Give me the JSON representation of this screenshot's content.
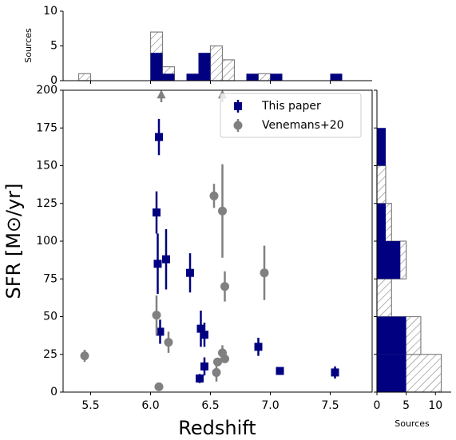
{
  "chart_data": [
    {
      "type": "histogram",
      "orientation": "vertical",
      "ylabel": "Sources",
      "bins": [
        5.4,
        5.5,
        5.6,
        5.7,
        5.8,
        5.9,
        6.0,
        6.1,
        6.2,
        6.3,
        6.4,
        6.5,
        6.6,
        6.7,
        6.8,
        6.9,
        7.0,
        7.1,
        7.2,
        7.3,
        7.4,
        7.5,
        7.6
      ],
      "xlim": [
        5.27,
        7.85
      ],
      "ylim": [
        0,
        10
      ],
      "yticks": [
        0,
        5,
        10
      ],
      "series": [
        {
          "color": "#808080",
          "hatch": true,
          "values": [
            1,
            0,
            0,
            0,
            0,
            0,
            7,
            2,
            0,
            0,
            0,
            5,
            3,
            0,
            0,
            1,
            0,
            0,
            0,
            0,
            0,
            0
          ]
        },
        {
          "color": "#000080",
          "hatch": false,
          "values": [
            0,
            0,
            0,
            0,
            0,
            0,
            4,
            1,
            0,
            1,
            4,
            0,
            0,
            0,
            1,
            0,
            1,
            0,
            0,
            0,
            0,
            1
          ]
        }
      ]
    },
    {
      "type": "scatter",
      "xlabel": "Redshift",
      "ylabel": "SFR [M⊙/yr]",
      "xlim": [
        5.27,
        7.85
      ],
      "ylim": [
        0,
        200
      ],
      "xticks": [
        5.5,
        {
          "value": 6,
          "label": "6.0"
        },
        6.5,
        {
          "value": 7,
          "label": "7.0"
        },
        7.5
      ],
      "yticks": [
        0,
        25,
        50,
        75,
        100,
        125,
        150,
        175,
        200
      ],
      "legend": "upper right",
      "series": [
        {
          "name": "This paper",
          "color": "#000080",
          "marker": "square",
          "x": [
            6.07,
            6.05,
            6.06,
            6.13,
            6.08,
            6.33,
            6.42,
            6.45,
            6.45,
            6.41,
            6.9,
            7.08,
            7.54
          ],
          "values": [
            169,
            119,
            85,
            88,
            40,
            79,
            42,
            38,
            17,
            9,
            30,
            14,
            13
          ],
          "errors": [
            12,
            14,
            20,
            20,
            8,
            13,
            12,
            8,
            6,
            3,
            6,
            2,
            4
          ]
        },
        {
          "name": "Venemans+20",
          "color": "#808080",
          "marker": "circle",
          "x": [
            5.45,
            6.05,
            6.07,
            6.15,
            6.53,
            6.6,
            6.62,
            6.95,
            6.55,
            6.56,
            6.6,
            6.62
          ],
          "values": [
            24,
            51,
            3.5,
            33,
            130,
            120,
            70,
            79,
            13,
            20,
            26,
            22
          ],
          "errors": [
            4,
            13,
            0,
            7,
            8,
            31,
            10,
            18,
            6,
            0,
            5,
            0
          ],
          "arrows_x": [
            6.09,
            6.6
          ]
        }
      ]
    },
    {
      "type": "histogram",
      "orientation": "horizontal",
      "xlabel": "Sources",
      "bins": [
        0,
        25,
        50,
        75,
        100,
        125,
        150,
        175,
        200
      ],
      "xlim": [
        0,
        12.7
      ],
      "ylim": [
        0,
        200
      ],
      "xticks": [
        0,
        5,
        10
      ],
      "series": [
        {
          "color": "#808080",
          "hatch": true,
          "values": [
            11,
            7.5,
            2.5,
            5,
            2.5,
            1.5,
            0,
            0
          ]
        },
        {
          "color": "#000080",
          "hatch": false,
          "values": [
            5,
            5,
            0,
            4,
            1.5,
            0,
            1.5,
            0
          ]
        }
      ]
    }
  ]
}
